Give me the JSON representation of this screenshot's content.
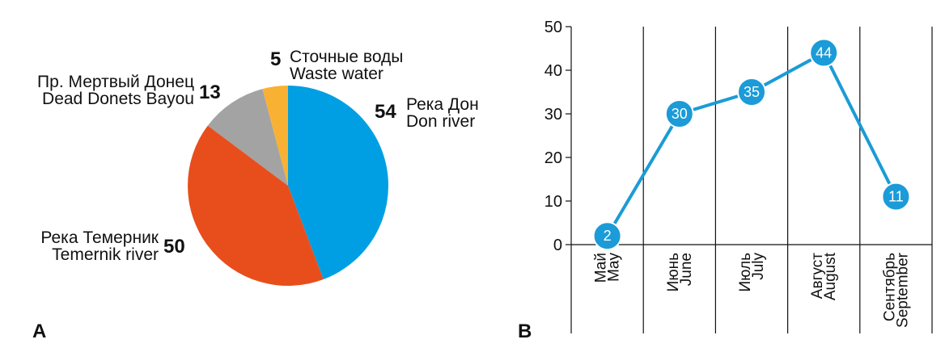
{
  "chart_data": [
    {
      "type": "pie",
      "panel_label": "A",
      "slices": [
        {
          "value": 54,
          "label_ru": "Река Дон",
          "label_en": "Don river",
          "color": "#009FE3"
        },
        {
          "value": 50,
          "label_ru": "Река Темерник",
          "label_en": "Temernik river",
          "color": "#E84E1B"
        },
        {
          "value": 13,
          "label_ru": "Пр. Мертвый Донец",
          "label_en": "Dead Donets Bayou",
          "color": "#A3A3A3"
        },
        {
          "value": 5,
          "label_ru": "Сточные воды",
          "label_en": "Waste water",
          "color": "#F8B133"
        }
      ]
    },
    {
      "type": "line",
      "panel_label": "B",
      "categories": [
        {
          "ru": "Май",
          "en": "May"
        },
        {
          "ru": "Июнь",
          "en": "June"
        },
        {
          "ru": "Июль",
          "en": "July"
        },
        {
          "ru": "Август",
          "en": "August"
        },
        {
          "ru": "Сентябрь",
          "en": "September"
        }
      ],
      "values": [
        2,
        30,
        35,
        44,
        11
      ],
      "ylim": [
        0,
        50
      ],
      "yticks": [
        0,
        10,
        20,
        30,
        40,
        50
      ],
      "grid": "vertical",
      "line_color": "#1B9BD7"
    }
  ]
}
